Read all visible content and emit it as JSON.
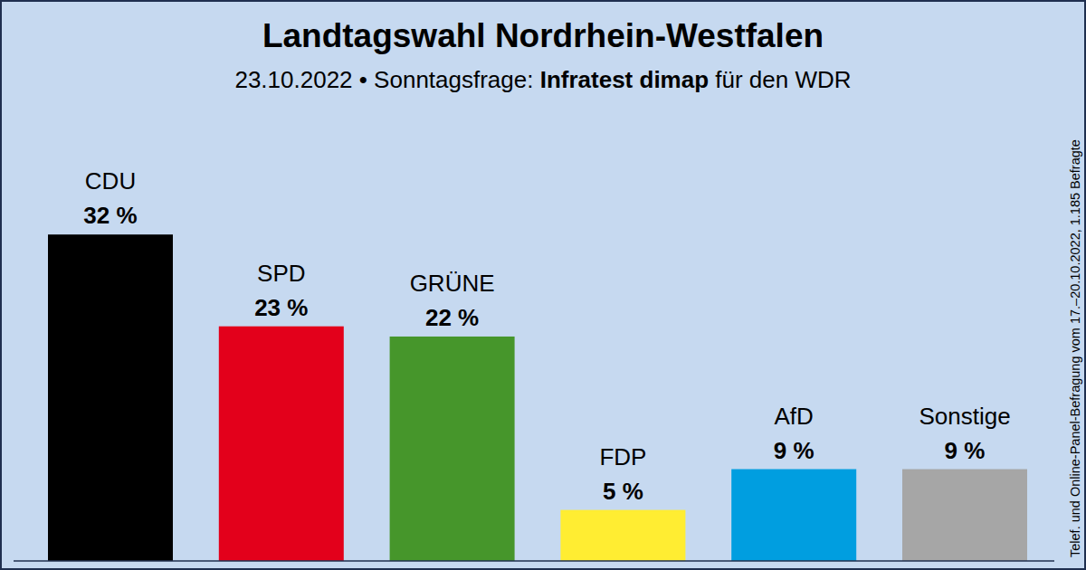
{
  "chart_data": {
    "type": "bar",
    "title": "Landtagswahl Nordrhein-Westfalen",
    "subtitle_parts": [
      "23.10.2022 • Sonntagsfrage:",
      "Infratest dimap",
      "für den WDR"
    ],
    "note": "Telef. und Online-Panel-Befragung vom 17.–20.10.2022, 1.185 Befragte",
    "categories": [
      "CDU",
      "SPD",
      "GRÜNE",
      "FDP",
      "AfD",
      "Sonstige"
    ],
    "values": [
      32,
      23,
      22,
      5,
      9,
      9
    ],
    "value_labels": [
      "32 %",
      "23 %",
      "22 %",
      "5 %",
      "9 %",
      "9 %"
    ],
    "colors": [
      "#000000",
      "#e3001b",
      "#46962b",
      "#ffed32",
      "#009ee0",
      "#a6a6a6"
    ],
    "ylim": [
      0,
      40
    ],
    "data_labels": true,
    "tick_labels": "x",
    "grid": false
  }
}
